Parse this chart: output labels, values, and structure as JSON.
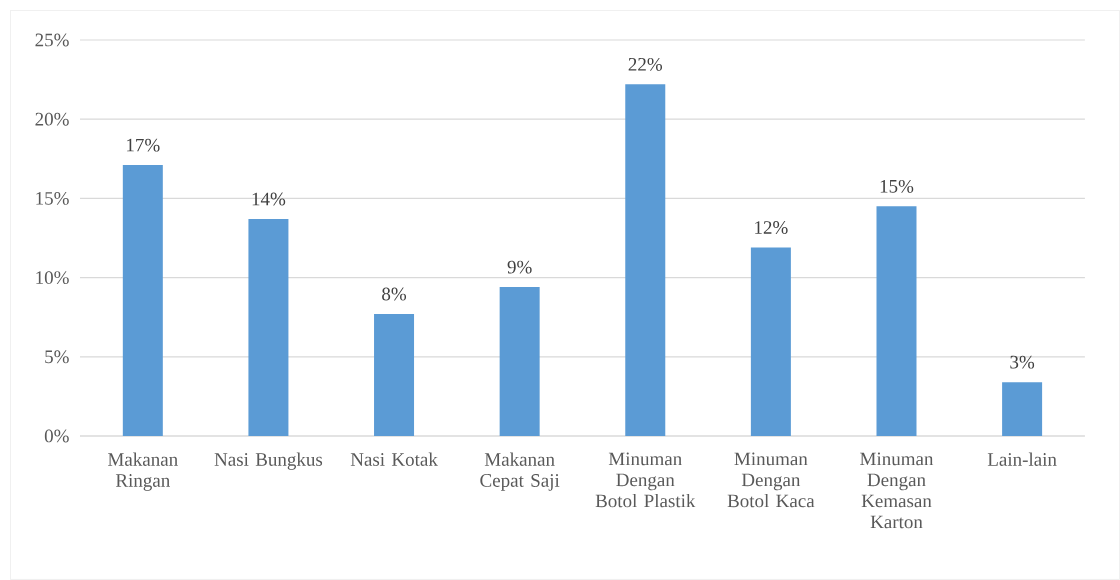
{
  "chart_data": {
    "type": "bar",
    "categories": [
      "Makanan Ringan",
      "Nasi Bungkus",
      "Nasi Kotak",
      "Makanan Cepat Saji",
      "Minuman Dengan Botol Plastik",
      "Minuman Dengan Botol Kaca",
      "Minuman Dengan Kemasan Karton",
      "Lain-lain"
    ],
    "values": [
      17.1,
      13.7,
      7.7,
      9.4,
      22.2,
      11.9,
      14.5,
      3.4
    ],
    "value_labels": [
      "17%",
      "14%",
      "8%",
      "9%",
      "22%",
      "12%",
      "15%",
      "3%"
    ],
    "color": "#5b9bd5",
    "ylim": [
      0,
      25
    ],
    "yticks": [
      {
        "value": 0,
        "label": "0%"
      },
      {
        "value": 5,
        "label": "5%"
      },
      {
        "value": 10,
        "label": "10%"
      },
      {
        "value": 15,
        "label": "15%"
      },
      {
        "value": 20,
        "label": "20%"
      },
      {
        "value": 25,
        "label": "25%"
      }
    ],
    "grid": "y"
  }
}
